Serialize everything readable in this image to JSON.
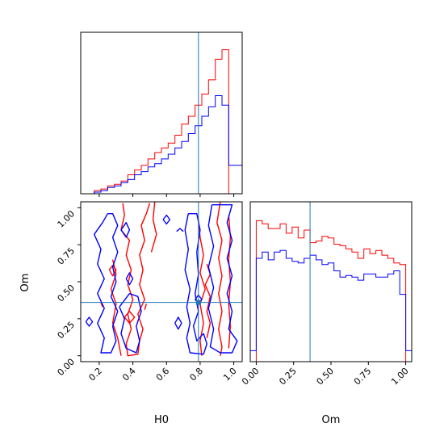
{
  "chart_data": {
    "type": "corner",
    "params": [
      "H0",
      "Om"
    ],
    "truth": {
      "H0": 0.79,
      "Om": 0.36
    },
    "colors": {
      "red": "#ff0000",
      "blue": "#0000ff",
      "truth": "#1f77b4"
    },
    "hist_H0": {
      "xlim": [
        0.09,
        1.05
      ],
      "ylim": [
        0,
        1
      ],
      "bin_edges": [
        0.09,
        0.13,
        0.17,
        0.21,
        0.25,
        0.29,
        0.33,
        0.37,
        0.41,
        0.45,
        0.49,
        0.53,
        0.57,
        0.61,
        0.65,
        0.69,
        0.73,
        0.77,
        0.81,
        0.85,
        0.89,
        0.93,
        0.97,
        1.01,
        1.05
      ],
      "red": [
        0.0,
        0.0,
        0.02,
        0.03,
        0.05,
        0.06,
        0.08,
        0.12,
        0.15,
        0.18,
        0.22,
        0.26,
        0.29,
        0.32,
        0.37,
        0.44,
        0.49,
        0.56,
        0.63,
        0.72,
        0.85,
        0.91,
        0.0,
        0.0
      ],
      "blue": [
        0.0,
        0.0,
        0.01,
        0.02,
        0.04,
        0.05,
        0.07,
        0.09,
        0.12,
        0.14,
        0.17,
        0.19,
        0.22,
        0.25,
        0.29,
        0.33,
        0.38,
        0.43,
        0.49,
        0.55,
        0.62,
        0.56,
        0.18,
        0.18
      ]
    },
    "hist_Om": {
      "xlim": [
        -0.04,
        1.04
      ],
      "ylim": [
        0,
        1
      ],
      "bin_edges": [
        -0.04,
        0.0,
        0.04,
        0.08,
        0.12,
        0.16,
        0.2,
        0.24,
        0.28,
        0.32,
        0.36,
        0.4,
        0.44,
        0.48,
        0.52,
        0.56,
        0.6,
        0.64,
        0.68,
        0.72,
        0.76,
        0.8,
        0.84,
        0.88,
        0.92,
        0.96,
        1.0,
        1.04
      ],
      "red": [
        0.0,
        0.9,
        0.88,
        0.85,
        0.85,
        0.88,
        0.82,
        0.86,
        0.79,
        0.84,
        0.76,
        0.77,
        0.8,
        0.79,
        0.75,
        0.74,
        0.72,
        0.7,
        0.66,
        0.72,
        0.69,
        0.71,
        0.68,
        0.66,
        0.63,
        0.62,
        0.0
      ],
      "blue": [
        0.07,
        0.66,
        0.7,
        0.65,
        0.7,
        0.71,
        0.66,
        0.64,
        0.63,
        0.66,
        0.68,
        0.65,
        0.62,
        0.63,
        0.58,
        0.54,
        0.55,
        0.54,
        0.52,
        0.56,
        0.56,
        0.54,
        0.54,
        0.56,
        0.58,
        0.43,
        0.07
      ]
    },
    "scatter": {
      "xlim": [
        0.09,
        1.05
      ],
      "ylim": [
        -0.04,
        1.04
      ],
      "red_contours": [
        [
          [
            0.34,
            1.03
          ],
          [
            0.35,
            0.95
          ],
          [
            0.33,
            0.85
          ],
          [
            0.38,
            0.78
          ],
          [
            0.36,
            0.68
          ],
          [
            0.39,
            0.58
          ],
          [
            0.37,
            0.48
          ],
          [
            0.4,
            0.38
          ],
          [
            0.37,
            0.28
          ],
          [
            0.39,
            0.18
          ],
          [
            0.36,
            0.08
          ],
          [
            0.37,
            0.0
          ],
          [
            0.43,
            0.01
          ],
          [
            0.44,
            0.1
          ],
          [
            0.46,
            0.18
          ],
          [
            0.43,
            0.28
          ],
          [
            0.47,
            0.38
          ],
          [
            0.44,
            0.48
          ],
          [
            0.46,
            0.58
          ],
          [
            0.44,
            0.68
          ],
          [
            0.47,
            0.78
          ],
          [
            0.45,
            0.88
          ],
          [
            0.48,
            0.96
          ],
          [
            0.5,
            1.03
          ]
        ],
        [
          [
            0.28,
            0.65
          ],
          [
            0.3,
            0.55
          ],
          [
            0.27,
            0.45
          ],
          [
            0.3,
            0.35
          ],
          [
            0.28,
            0.22
          ],
          [
            0.31,
            0.12
          ],
          [
            0.33,
            0.0
          ]
        ],
        [
          [
            0.53,
            1.04
          ],
          [
            0.52,
            0.92
          ],
          [
            0.54,
            0.82
          ],
          [
            0.51,
            0.7
          ]
        ],
        [
          [
            0.92,
            1.04
          ],
          [
            0.9,
            0.9
          ],
          [
            0.93,
            0.78
          ],
          [
            0.91,
            0.66
          ],
          [
            0.93,
            0.54
          ],
          [
            0.91,
            0.42
          ],
          [
            0.93,
            0.3
          ],
          [
            0.91,
            0.18
          ],
          [
            0.93,
            0.06
          ],
          [
            0.92,
            0.0
          ]
        ],
        [
          [
            0.97,
            0.95
          ],
          [
            0.98,
            0.8
          ],
          [
            0.97,
            0.65
          ],
          [
            0.98,
            0.5
          ],
          [
            0.97,
            0.35
          ],
          [
            0.98,
            0.2
          ],
          [
            0.97,
            0.05
          ]
        ],
        [
          [
            0.79,
            0.92
          ],
          [
            0.8,
            0.8
          ],
          [
            0.82,
            0.68
          ],
          [
            0.8,
            0.56
          ],
          [
            0.83,
            0.45
          ],
          [
            0.8,
            0.35
          ],
          [
            0.82,
            0.22
          ],
          [
            0.8,
            0.1
          ],
          [
            0.81,
            0.0
          ]
        ],
        [
          [
            0.84,
            0.62
          ],
          [
            0.86,
            0.55
          ],
          [
            0.83,
            0.48
          ],
          [
            0.86,
            0.4
          ],
          [
            0.84,
            0.3
          ],
          [
            0.86,
            0.22
          ],
          [
            0.84,
            0.12
          ]
        ],
        [
          [
            0.21,
            0.36
          ],
          [
            0.22,
            0.33
          ]
        ],
        [
          [
            0.48,
            0.35
          ],
          [
            0.47,
            0.31
          ]
        ],
        [
          [
            0.26,
            0.58
          ],
          [
            0.28,
            0.54
          ],
          [
            0.3,
            0.58
          ],
          [
            0.28,
            0.61
          ],
          [
            0.26,
            0.58
          ]
        ],
        [
          [
            0.35,
            0.26
          ],
          [
            0.38,
            0.22
          ],
          [
            0.41,
            0.26
          ],
          [
            0.38,
            0.3
          ],
          [
            0.35,
            0.26
          ]
        ]
      ],
      "blue_contours": [
        [
          [
            0.25,
            0.96
          ],
          [
            0.22,
            0.9
          ],
          [
            0.17,
            0.82
          ],
          [
            0.21,
            0.72
          ],
          [
            0.19,
            0.62
          ],
          [
            0.23,
            0.52
          ],
          [
            0.19,
            0.42
          ],
          [
            0.23,
            0.32
          ],
          [
            0.19,
            0.22
          ],
          [
            0.23,
            0.12
          ],
          [
            0.21,
            0.02
          ],
          [
            0.27,
            0.02
          ],
          [
            0.3,
            0.1
          ],
          [
            0.28,
            0.2
          ],
          [
            0.31,
            0.3
          ],
          [
            0.27,
            0.4
          ],
          [
            0.3,
            0.5
          ],
          [
            0.28,
            0.6
          ],
          [
            0.31,
            0.7
          ],
          [
            0.28,
            0.8
          ],
          [
            0.31,
            0.88
          ],
          [
            0.28,
            0.96
          ],
          [
            0.25,
            0.96
          ]
        ],
        [
          [
            0.33,
            0.85
          ],
          [
            0.36,
            0.8
          ],
          [
            0.38,
            0.85
          ],
          [
            0.36,
            0.9
          ],
          [
            0.33,
            0.85
          ]
        ],
        [
          [
            0.32,
            0.33
          ],
          [
            0.35,
            0.25
          ],
          [
            0.33,
            0.15
          ],
          [
            0.36,
            0.05
          ],
          [
            0.42,
            0.02
          ],
          [
            0.44,
            0.1
          ],
          [
            0.42,
            0.2
          ],
          [
            0.45,
            0.3
          ],
          [
            0.43,
            0.4
          ],
          [
            0.38,
            0.42
          ],
          [
            0.32,
            0.33
          ]
        ],
        [
          [
            0.12,
            0.23
          ],
          [
            0.14,
            0.2
          ],
          [
            0.16,
            0.23
          ],
          [
            0.14,
            0.26
          ],
          [
            0.12,
            0.23
          ]
        ],
        [
          [
            0.36,
            0.52
          ],
          [
            0.38,
            0.48
          ],
          [
            0.4,
            0.52
          ],
          [
            0.38,
            0.56
          ],
          [
            0.36,
            0.52
          ]
        ],
        [
          [
            0.58,
            0.92
          ],
          [
            0.6,
            0.89
          ],
          [
            0.62,
            0.92
          ],
          [
            0.6,
            0.95
          ],
          [
            0.58,
            0.92
          ]
        ],
        [
          [
            0.66,
            0.84
          ],
          [
            0.68,
            0.86
          ],
          [
            0.7,
            0.84
          ]
        ],
        [
          [
            0.73,
            0.96
          ],
          [
            0.71,
            0.85
          ],
          [
            0.73,
            0.72
          ],
          [
            0.71,
            0.58
          ],
          [
            0.74,
            0.45
          ],
          [
            0.72,
            0.33
          ],
          [
            0.74,
            0.22
          ],
          [
            0.72,
            0.12
          ],
          [
            0.74,
            0.02
          ],
          [
            0.82,
            0.01
          ],
          [
            0.84,
            0.08
          ],
          [
            0.82,
            0.15
          ],
          [
            0.78,
            0.1
          ],
          [
            0.76,
            0.2
          ],
          [
            0.79,
            0.3
          ],
          [
            0.77,
            0.42
          ],
          [
            0.79,
            0.55
          ],
          [
            0.78,
            0.7
          ],
          [
            0.8,
            0.85
          ],
          [
            0.78,
            0.96
          ],
          [
            0.73,
            0.96
          ]
        ],
        [
          [
            0.65,
            0.22
          ],
          [
            0.67,
            0.18
          ],
          [
            0.69,
            0.22
          ],
          [
            0.67,
            0.26
          ],
          [
            0.65,
            0.22
          ]
        ],
        [
          [
            0.87,
            1.02
          ],
          [
            0.85,
            0.88
          ],
          [
            0.88,
            0.74
          ],
          [
            0.85,
            0.6
          ],
          [
            0.88,
            0.46
          ],
          [
            0.85,
            0.32
          ],
          [
            0.88,
            0.18
          ],
          [
            0.86,
            0.06
          ],
          [
            0.92,
            0.02
          ],
          [
            0.99,
            0.02
          ],
          [
            1.02,
            0.1
          ],
          [
            0.97,
            0.18
          ],
          [
            0.99,
            0.3
          ],
          [
            0.96,
            0.42
          ],
          [
            0.99,
            0.54
          ],
          [
            0.96,
            0.66
          ],
          [
            0.99,
            0.78
          ],
          [
            0.96,
            0.9
          ],
          [
            0.99,
            1.02
          ],
          [
            0.87,
            1.02
          ]
        ],
        [
          [
            0.77,
            0.38
          ],
          [
            0.79,
            0.35
          ],
          [
            0.81,
            0.38
          ],
          [
            0.79,
            0.41
          ],
          [
            0.77,
            0.38
          ]
        ]
      ]
    },
    "ticks_H0": [
      "0.2",
      "0.4",
      "0.6",
      "0.8",
      "1.0"
    ],
    "ticks_Om": [
      "0.00",
      "0.25",
      "0.50",
      "0.75",
      "1.00"
    ],
    "xlabel_left": "H0",
    "xlabel_right": "Om",
    "ylabel_scatter": "Om"
  }
}
